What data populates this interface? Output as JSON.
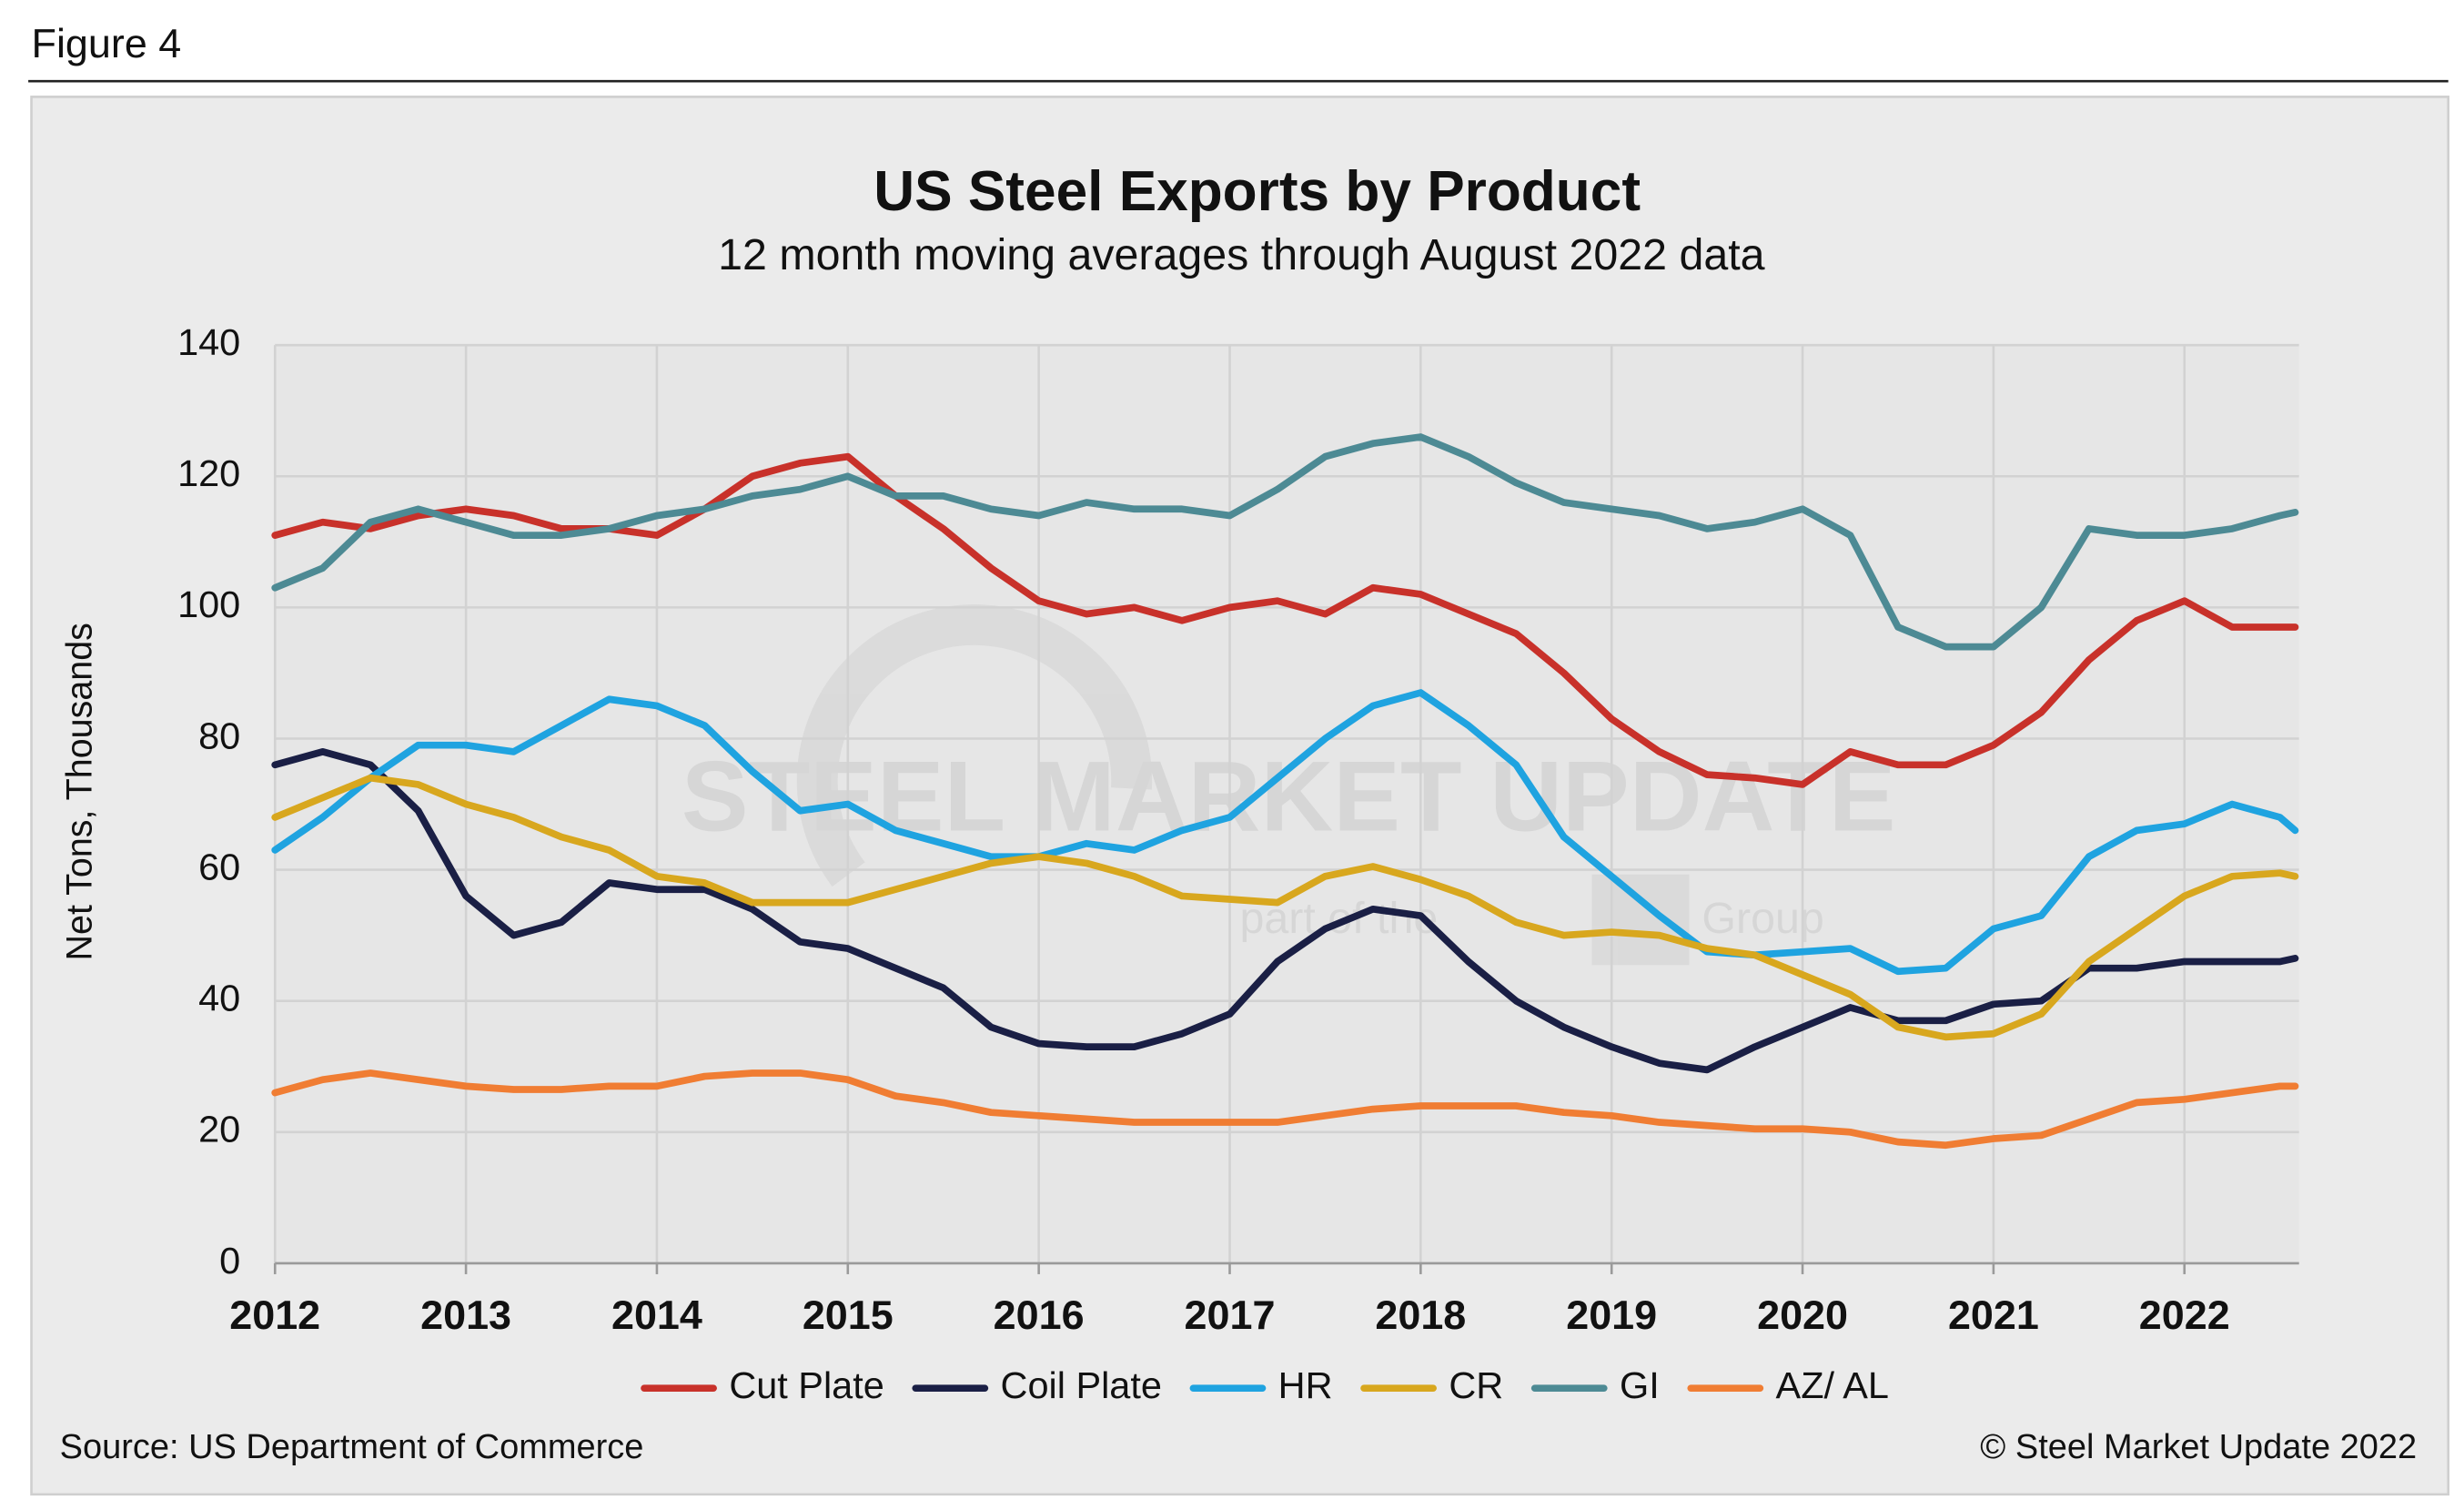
{
  "figure_label": "Figure 4",
  "source": "Source: US Department of Commerce",
  "copyright": "© Steel Market Update 2022",
  "chart_data": {
    "type": "line",
    "title": "US Steel Exports by Product",
    "subtitle": "12 month moving averages through August 2022 data",
    "y_label": "Net Tons, Thousands",
    "watermark": [
      "STEEL MARKET UPDATE",
      "part of the",
      "Group"
    ],
    "xlim": [
      2012,
      2022.6
    ],
    "xticks": [
      2012,
      2013,
      2014,
      2015,
      2016,
      2017,
      2018,
      2019,
      2020,
      2021,
      2022
    ],
    "ylim": [
      0,
      140
    ],
    "yticks": [
      0,
      20,
      40,
      60,
      80,
      100,
      120,
      140
    ],
    "grid": true,
    "legend": "bottom",
    "x": [
      2012,
      2012.25,
      2012.5,
      2012.75,
      2013,
      2013.25,
      2013.5,
      2013.75,
      2014,
      2014.25,
      2014.5,
      2014.75,
      2015,
      2015.25,
      2015.5,
      2015.75,
      2016,
      2016.25,
      2016.5,
      2016.75,
      2017,
      2017.25,
      2017.5,
      2017.75,
      2018,
      2018.25,
      2018.5,
      2018.75,
      2019,
      2019.25,
      2019.5,
      2019.75,
      2020,
      2020.25,
      2020.5,
      2020.75,
      2021,
      2021.25,
      2021.5,
      2021.75,
      2022,
      2022.25,
      2022.5,
      2022.58
    ],
    "series": [
      {
        "name": "Cut Plate",
        "color": "#c8312a",
        "values": [
          111,
          113,
          112,
          114,
          115,
          114,
          112,
          112,
          111,
          115,
          120,
          122,
          123,
          117,
          112,
          106,
          101,
          99,
          100,
          98,
          100,
          101,
          99,
          103,
          102,
          99,
          96,
          90,
          83,
          78,
          74.5,
          74,
          73,
          78,
          76,
          76,
          79,
          84,
          92,
          98,
          101,
          97,
          97,
          97
        ]
      },
      {
        "name": "Coil Plate",
        "color": "#1a1f45",
        "values": [
          76,
          78,
          76,
          69,
          56,
          50,
          52,
          58,
          57,
          57,
          54,
          49,
          48,
          45,
          42,
          36,
          33.5,
          33,
          33,
          35,
          38,
          46,
          51,
          54,
          53,
          46,
          40,
          36,
          33,
          30.5,
          29.5,
          33,
          36,
          39,
          37,
          37,
          39.5,
          40,
          45,
          45,
          46,
          46,
          46,
          46.5
        ]
      },
      {
        "name": "HR",
        "color": "#1fa3e0",
        "values": [
          63,
          68,
          74,
          79,
          79,
          78,
          82,
          86,
          85,
          82,
          75,
          69,
          70,
          66,
          64,
          62,
          62,
          64,
          63,
          66,
          68,
          74,
          80,
          85,
          87,
          82,
          76,
          65,
          59,
          53,
          47.5,
          47,
          47.5,
          48,
          44.5,
          45,
          51,
          53,
          62,
          66,
          67,
          70,
          68,
          66
        ]
      },
      {
        "name": "CR",
        "color": "#d8a71e",
        "values": [
          68,
          71,
          74,
          73,
          70,
          68,
          65,
          63,
          59,
          58,
          55,
          55,
          55,
          57,
          59,
          61,
          62,
          61,
          59,
          56,
          55.5,
          55,
          59,
          60.5,
          58.5,
          56,
          52,
          50,
          50.5,
          50,
          48,
          47,
          44,
          41,
          36,
          34.5,
          35,
          38,
          46,
          51,
          56,
          59,
          59.5,
          59
        ]
      },
      {
        "name": "GI",
        "color": "#4d8a94",
        "values": [
          103,
          106,
          113,
          115,
          113,
          111,
          111,
          112,
          114,
          115,
          117,
          118,
          120,
          117,
          117,
          115,
          114,
          116,
          115,
          115,
          114,
          118,
          123,
          125,
          126,
          123,
          119,
          116,
          115,
          114,
          112,
          113,
          115,
          111,
          97,
          94,
          94,
          100,
          112,
          111,
          111,
          112,
          114,
          114.5
        ]
      },
      {
        "name": "AZ/ AL",
        "color": "#f07d33",
        "values": [
          26,
          28,
          29,
          28,
          27,
          26.5,
          26.5,
          27,
          27,
          28.5,
          29,
          29,
          28,
          25.5,
          24.5,
          23,
          22.5,
          22,
          21.5,
          21.5,
          21.5,
          21.5,
          22.5,
          23.5,
          24,
          24,
          24,
          23,
          22.5,
          21.5,
          21,
          20.5,
          20.5,
          20,
          18.5,
          18,
          19,
          19.5,
          22,
          24.5,
          25,
          26,
          27,
          27
        ]
      }
    ]
  }
}
